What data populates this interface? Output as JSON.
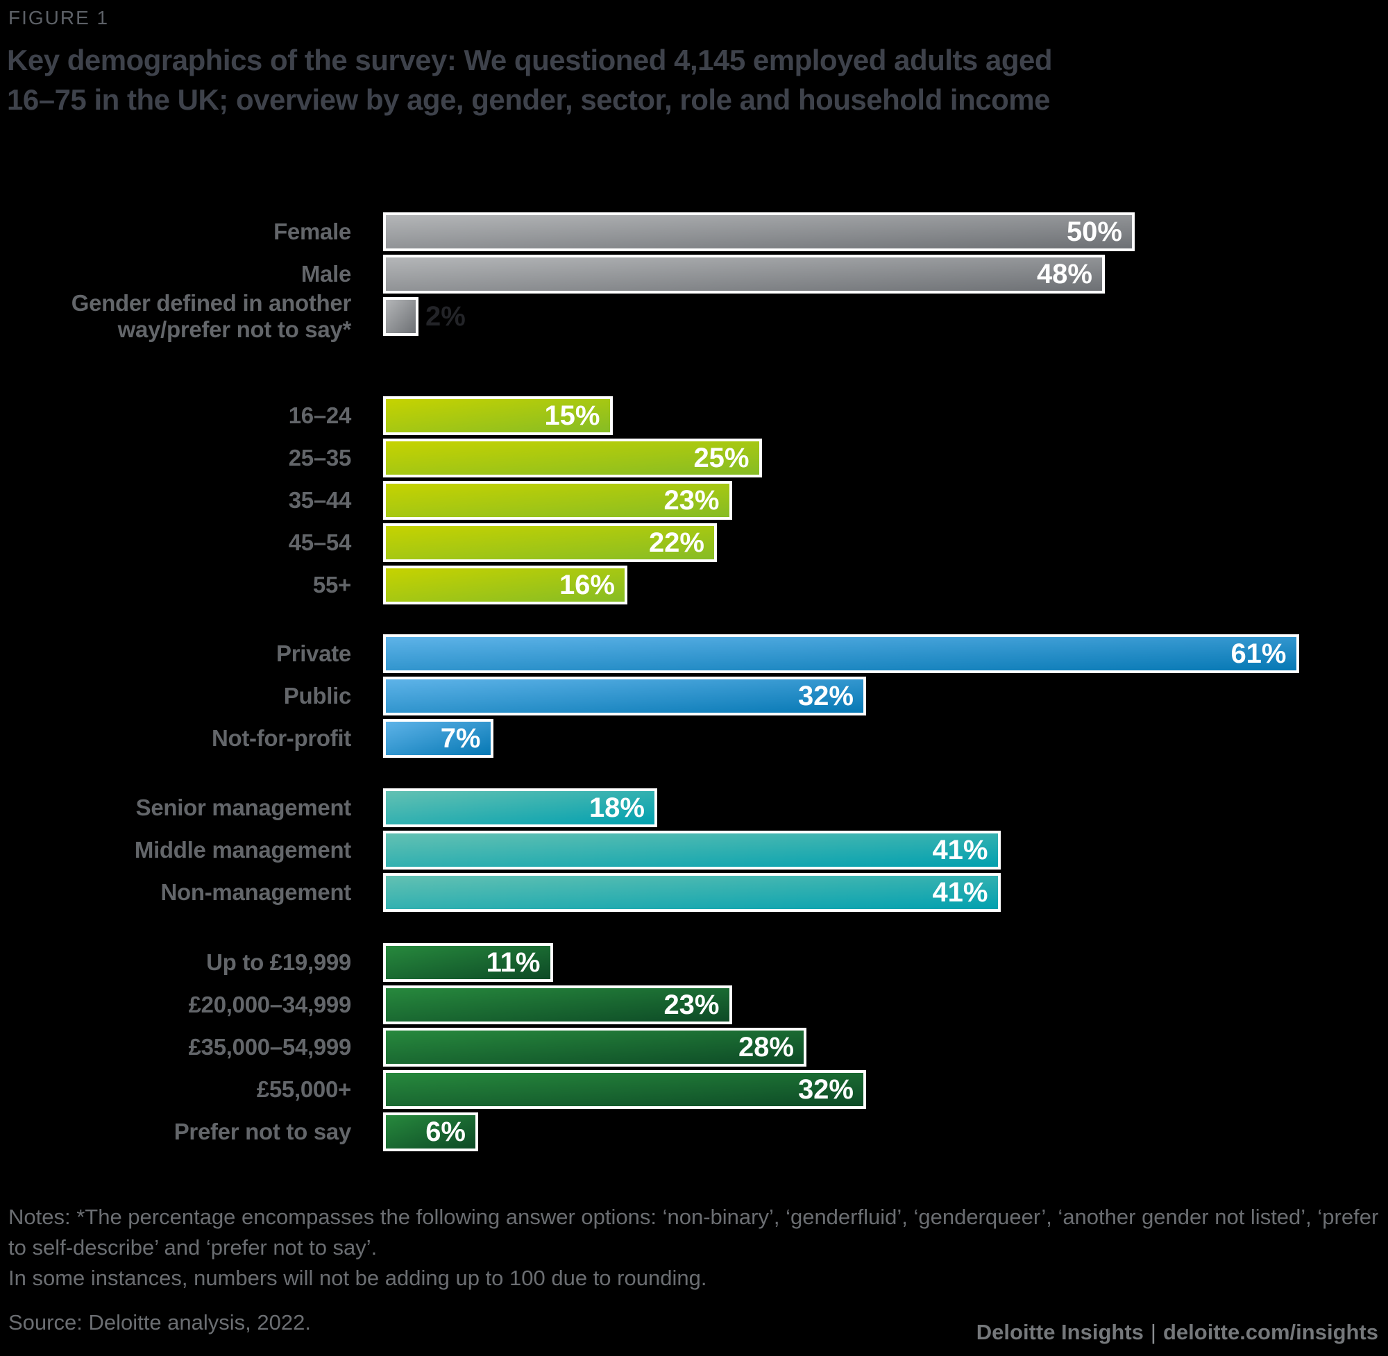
{
  "figure_label": "FIGURE 1",
  "header": {
    "title_line1": "Key demographics of the survey: We questioned 4,145 employed adults aged",
    "title_line2": "16–75 in the UK; overview by age, gender, sector, role and household income"
  },
  "chart_data": {
    "type": "bar",
    "orientation": "horizontal",
    "title": "Key demographics of the survey: We questioned 4,145 employed adults aged 16–75 in the UK; overview by age, gender, sector, role and household income",
    "unit": "%",
    "xlim": [
      0,
      65
    ],
    "grid": false,
    "legend": "none",
    "value_labels": "inside-right, white; shown outside in dark grey when bar is too short",
    "groups": [
      {
        "id": "gender",
        "bar_color_start": "#b4b6b8",
        "bar_color_end": "#6d7074",
        "rows": [
          {
            "label": "Female",
            "value": 50
          },
          {
            "label": "Male",
            "value": 48
          },
          {
            "label": "Gender defined in another way/prefer not to say*",
            "value": 2,
            "value_outside": true
          }
        ]
      },
      {
        "id": "age",
        "bar_color_start": "#c6d300",
        "bar_color_end": "#86bc25",
        "rows": [
          {
            "label": "16–24",
            "value": 15
          },
          {
            "label": "25–35",
            "value": 25
          },
          {
            "label": "35–44",
            "value": 23
          },
          {
            "label": "45–54",
            "value": 22
          },
          {
            "label": "55+",
            "value": 16
          }
        ]
      },
      {
        "id": "sector",
        "bar_color_start": "#5eb3e8",
        "bar_color_end": "#0678b4",
        "rows": [
          {
            "label": "Private",
            "value": 61
          },
          {
            "label": "Public",
            "value": 32
          },
          {
            "label": "Not-for-profit",
            "value": 7
          }
        ]
      },
      {
        "id": "role",
        "bar_color_start": "#63c1b2",
        "bar_color_end": "#02a0af",
        "rows": [
          {
            "label": "Senior management",
            "value": 18
          },
          {
            "label": "Middle management",
            "value": 41
          },
          {
            "label": "Non-management",
            "value": 41
          }
        ]
      },
      {
        "id": "household_income",
        "bar_color_start": "#27893d",
        "bar_color_end": "#0d4a26",
        "rows": [
          {
            "label": "Up to £19,999",
            "value": 11
          },
          {
            "label": "£20,000–34,999",
            "value": 23
          },
          {
            "label": "£35,000–54,999",
            "value": 28
          },
          {
            "label": "£55,000+",
            "value": 32
          },
          {
            "label": "Prefer not to say",
            "value": 6
          }
        ]
      }
    ]
  },
  "notes": {
    "note1": "Notes: *The percentage encompasses the following answer options: ‘non-binary’, ‘genderfluid’, ‘genderqueer’, ‘another gender not listed’, ‘prefer to self-describe’ and ‘prefer not to say’.",
    "note2": "In some instances, numbers will not be adding up to 100 due to rounding.",
    "source": "Source: Deloitte analysis, 2022."
  },
  "footer": {
    "brand": "Deloitte Insights",
    "separator": "|",
    "url": "deloitte.com/insights"
  },
  "colors": {
    "background": "#000000",
    "title_text": "#3e424b",
    "figure_label_text": "#5d6167",
    "category_label_text": "#63666a",
    "note_text": "#6b6e72",
    "footer_text": "#75787b",
    "value_text": "#ffffff",
    "value_text_outside": "#232428",
    "bar_border": "#ffffff"
  }
}
